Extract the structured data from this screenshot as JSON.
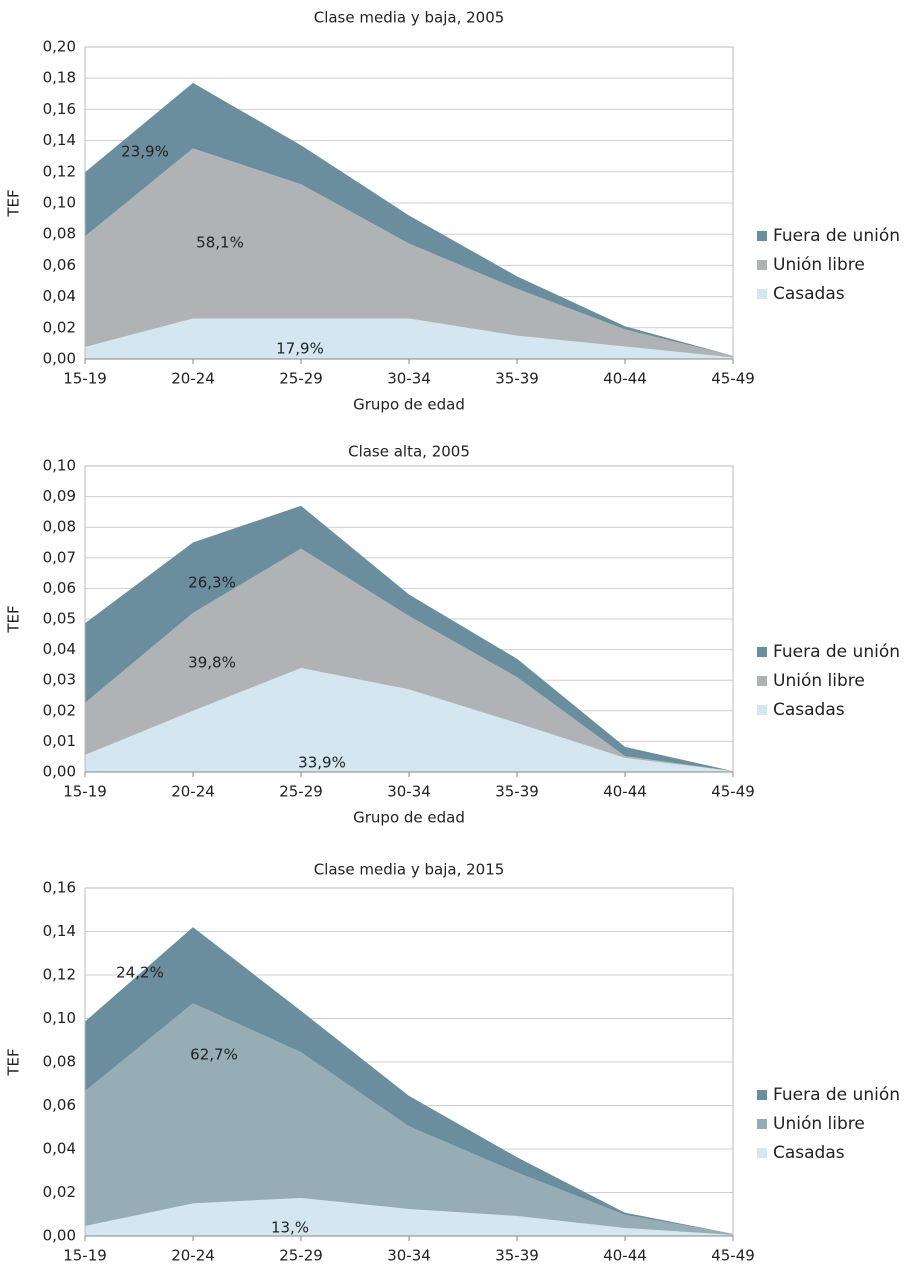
{
  "chart_data": [
    {
      "type": "stacked_area",
      "title": "Clase media y baja, 2005",
      "x_label": "Grupo de edad",
      "y_label": "TEF",
      "categories": [
        "15-19",
        "20-24",
        "25-29",
        "30-34",
        "35-39",
        "40-44",
        "45-49"
      ],
      "series": [
        {
          "name": "Casadas",
          "color": "#d4e6ef",
          "values": [
            0.0077,
            0.026,
            0.026,
            0.026,
            0.015,
            0.008,
            0.001
          ]
        },
        {
          "name": "Unión libre",
          "color": "#b0b3b5",
          "values": [
            0.071,
            0.109,
            0.086,
            0.048,
            0.03,
            0.011,
            0.001
          ]
        },
        {
          "name": "Fuera de unión",
          "color": "#6b8e9f",
          "values": [
            0.041,
            0.042,
            0.025,
            0.018,
            0.008,
            0.002,
            0.0
          ]
        }
      ],
      "annotations": [
        "23,9%",
        "58,1%",
        "17,9%"
      ],
      "ylim": [
        0,
        0.2
      ],
      "yticks": [
        {
          "value": 0,
          "label": "0,00"
        },
        {
          "value": 0.02,
          "label": "0,02"
        },
        {
          "value": 0.04,
          "label": "0,04"
        },
        {
          "value": 0.06,
          "label": "0,06"
        },
        {
          "value": 0.08,
          "label": "0,08"
        },
        {
          "value": 0.1,
          "label": "0,10"
        },
        {
          "value": 0.12,
          "label": "0,12"
        },
        {
          "value": 0.14,
          "label": "0,14"
        },
        {
          "value": 0.16,
          "label": "0,16"
        },
        {
          "value": 0.18,
          "label": "0,18"
        },
        {
          "value": 0.2,
          "label": "0,20"
        }
      ],
      "grid": true,
      "legend": "right"
    },
    {
      "type": "stacked_area",
      "title": "Clase alta, 2005",
      "x_label": "Grupo de edad",
      "y_label": "TEF",
      "categories": [
        "15-19",
        "20-24",
        "25-29",
        "30-34",
        "35-39",
        "40-44",
        "45-49"
      ],
      "series": [
        {
          "name": "Casadas",
          "color": "#d4e6ef",
          "values": [
            0.0056,
            0.02,
            0.034,
            0.027,
            0.016,
            0.0046,
            0.0003
          ]
        },
        {
          "name": "Unión libre",
          "color": "#b0b3b5",
          "values": [
            0.017,
            0.032,
            0.039,
            0.024,
            0.015,
            0.0006,
            0.0
          ]
        },
        {
          "name": "Fuera de unión",
          "color": "#6b8e9f",
          "values": [
            0.026,
            0.023,
            0.014,
            0.007,
            0.006,
            0.003,
            0.0
          ]
        }
      ],
      "annotations": [
        "26,3%",
        "39,8%",
        "33,9%"
      ],
      "ylim": [
        0,
        0.1
      ],
      "yticks": [
        {
          "value": 0,
          "label": "0,00"
        },
        {
          "value": 0.01,
          "label": "0,01"
        },
        {
          "value": 0.02,
          "label": "0,02"
        },
        {
          "value": 0.03,
          "label": "0,03"
        },
        {
          "value": 0.04,
          "label": "0,04"
        },
        {
          "value": 0.05,
          "label": "0,05"
        },
        {
          "value": 0.06,
          "label": "0,06"
        },
        {
          "value": 0.07,
          "label": "0,07"
        },
        {
          "value": 0.08,
          "label": "0,08"
        },
        {
          "value": 0.09,
          "label": "0,09"
        },
        {
          "value": 0.1,
          "label": "0,10"
        }
      ],
      "grid": true,
      "legend": "right"
    },
    {
      "type": "stacked_area",
      "title": "Clase media y baja, 2015",
      "x_label": "Grupo de edad",
      "y_label": "TEF",
      "categories": [
        "15-19",
        "20-24",
        "25-29",
        "30-34",
        "35-39",
        "40-44",
        "45-49"
      ],
      "series": [
        {
          "name": "Casadas",
          "color": "#d4e6ef",
          "values": [
            0.0046,
            0.015,
            0.0175,
            0.0124,
            0.0092,
            0.0037,
            0.0005
          ]
        },
        {
          "name": "Unión libre",
          "color": "#96adb6",
          "values": [
            0.062,
            0.092,
            0.067,
            0.038,
            0.02,
            0.006,
            0.0005
          ]
        },
        {
          "name": "Fuera de unión",
          "color": "#6b8e9f",
          "values": [
            0.032,
            0.035,
            0.019,
            0.014,
            0.007,
            0.001,
            0.0
          ]
        }
      ],
      "annotations": [
        "24,2%",
        "62,7%",
        "13,%"
      ],
      "ylim": [
        0,
        0.16
      ],
      "yticks": [
        {
          "value": 0,
          "label": "0,00"
        },
        {
          "value": 0.02,
          "label": "0,02"
        },
        {
          "value": 0.04,
          "label": "0,04"
        },
        {
          "value": 0.06,
          "label": "0,06"
        },
        {
          "value": 0.08,
          "label": "0,08"
        },
        {
          "value": 0.1,
          "label": "0,10"
        },
        {
          "value": 0.12,
          "label": "0,12"
        },
        {
          "value": 0.14,
          "label": "0,14"
        },
        {
          "value": 0.16,
          "label": "0,16"
        }
      ],
      "grid": true,
      "legend": "right"
    }
  ]
}
